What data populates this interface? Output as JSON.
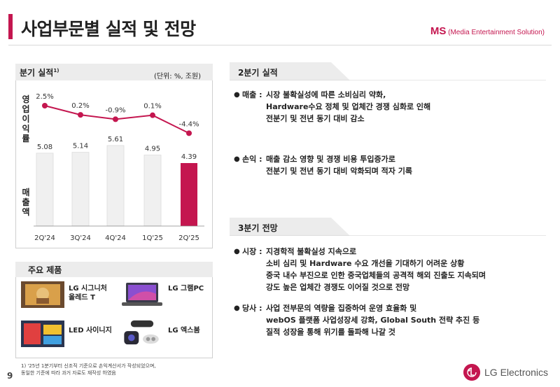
{
  "header": {
    "title": "사업부문별 실적 및 전망",
    "division_abbr": "MS",
    "division_full": "(Media Entertainment Solution)"
  },
  "left_panel": {
    "title": "분기 실적",
    "title_sup": "1)",
    "unit": "(단위: %, 조원)",
    "op_margin_label": [
      "영",
      "업",
      "이",
      "익",
      "률"
    ],
    "sales_label": [
      "매",
      "출",
      "액"
    ]
  },
  "chart_data": {
    "type": "bar",
    "categories": [
      "2Q'24",
      "3Q'24",
      "4Q'24",
      "1Q'25",
      "2Q'25"
    ],
    "series": [
      {
        "name": "매출액",
        "values": [
          5.08,
          5.14,
          5.61,
          4.95,
          4.39
        ]
      },
      {
        "name": "영업이익률",
        "values": [
          2.5,
          0.2,
          -0.9,
          0.1,
          -4.4
        ]
      }
    ],
    "bar_labels": [
      "5.08",
      "5.14",
      "5.61",
      "4.95",
      "4.39"
    ],
    "line_labels": [
      "2.5%",
      "0.2%",
      "-0.9%",
      "0.1%",
      "-4.4%"
    ],
    "colors": {
      "bar": "#f0f0f0",
      "bar_highlight": "#c4164f",
      "line": "#c4164f"
    }
  },
  "products": {
    "title": "주요 제품",
    "items": [
      {
        "label": [
          "LG 시그니처",
          "올레드 T"
        ],
        "icon": "tv-image"
      },
      {
        "label": [
          "LG 그램PC"
        ],
        "icon": "laptop-image"
      },
      {
        "label": [
          "LED 사이니지"
        ],
        "icon": "signage-image"
      },
      {
        "label": [
          "LG 엑스붐"
        ],
        "icon": "speaker-image"
      }
    ]
  },
  "sections": [
    {
      "title": "2분기 실적",
      "bullets": [
        {
          "key": "매출 :",
          "lines": [
            "시장 불확실성에 따른 소비심리 약화,",
            "Hardware수요 정체 및 업체간 경쟁 심화로 인해",
            "전분기 및 전년 동기 대비 감소"
          ]
        },
        {
          "key": "손익 :",
          "lines": [
            "매출 감소 영향 및 경쟁 비용 투입증가로",
            "전분기 및 전년 동기 대비 악화되며 적자 기록"
          ]
        }
      ]
    },
    {
      "title": "3분기 전망",
      "bullets": [
        {
          "key": "시장 :",
          "lines": [
            "지경학적 불확실성 지속으로",
            "소비 심리 및 Hardware 수요 개선을 기대하기 어려운 상황",
            "중국 내수 부진으로 인한 중국업체들의 공격적 해외 진출도 지속되며",
            "강도 높은 업체간 경쟁도 이어질 것으로 전망"
          ]
        },
        {
          "key": "당사 :",
          "lines": [
            "사업 전부문의 역량을 집중하여 운영 효율화 및",
            "webOS 플랫폼 사업성장세 강화, Global South 전략 추진 등",
            "질적 성장을 통해 위기를 돌파해 나갈 것"
          ]
        }
      ]
    }
  ],
  "footer": {
    "footnote": [
      "1) '25년 1분기부터 신조직 기준으로 손익계산서가 작성되었으며,",
      "동일한 기준에 따라 과거 자료도 재작성 하였음"
    ],
    "page": "9",
    "logo_text": "LG Electronics"
  }
}
